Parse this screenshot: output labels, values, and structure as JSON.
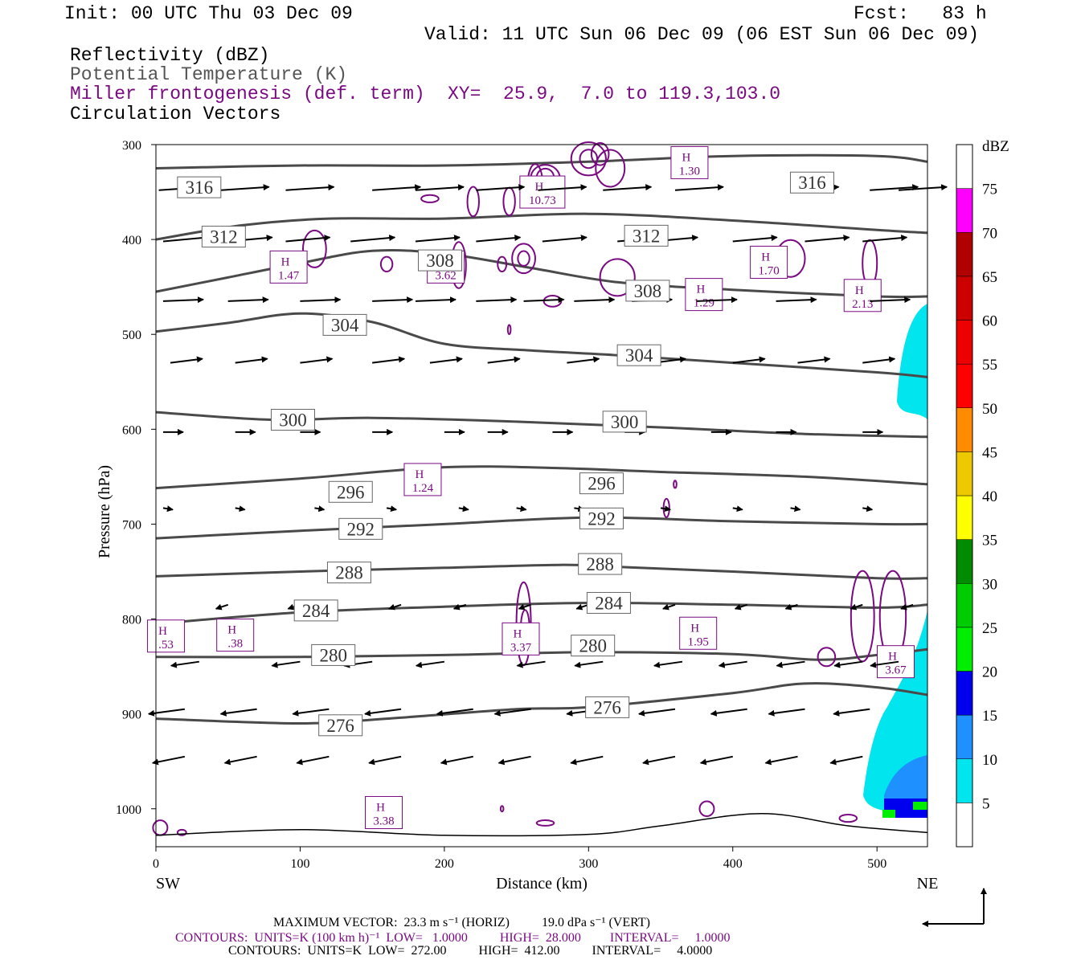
{
  "header": {
    "init": "Init: 00 UTC Thu 03 Dec 09",
    "fcst": "Fcst:   83 h",
    "valid": "Valid: 11 UTC Sun 06 Dec 09 (06 EST Sun 06 Dec 09)",
    "field1": "Reflectivity (dBZ)",
    "field2": "Potential Temperature (K)",
    "field3": "Miller frontogenesis (def. term)",
    "xy": "XY=  25.9,  7.0 to 119.3,103.0",
    "field4": "Circulation Vectors"
  },
  "footer": {
    "max_vector": "MAXIMUM VECTOR:  23.3 m s⁻¹ (HORIZ)          19.0 dPa s⁻¹ (VERT)",
    "contours1": "CONTOURS:  UNITS=K (100 km h)⁻¹  LOW=   1.0000          HIGH=  28.000         INTERVAL=     1.0000",
    "contours2": "CONTOURS:  UNITS=K  LOW=  272.00          HIGH=  412.00          INTERVAL=     4.0000"
  },
  "colors": {
    "theta": "#4a4a4a",
    "frontogenesis": "#7a0a82",
    "vectors": "#000000"
  },
  "chart_data": {
    "type": "cross-section",
    "xlabel": "Distance (km)",
    "ylabel": "Pressure (hPa)",
    "xlim": [
      0,
      535
    ],
    "ylim": [
      1040,
      300
    ],
    "x_ticks": [
      0,
      100,
      200,
      300,
      400,
      500
    ],
    "y_ticks": [
      300,
      400,
      500,
      600,
      700,
      800,
      900,
      1000
    ],
    "x_end_labels": [
      "SW",
      "NE"
    ],
    "colorbar": {
      "title": "dBZ",
      "levels": [
        5,
        10,
        15,
        20,
        25,
        30,
        35,
        40,
        45,
        50,
        55,
        60,
        65,
        70,
        75
      ],
      "colors": [
        "#00e5ee",
        "#1e90ff",
        "#0000ee",
        "#00ee00",
        "#00cd00",
        "#008b00",
        "#ffff00",
        "#eec900",
        "#ff8c00",
        "#ff0000",
        "#ee0000",
        "#cd0000",
        "#b00000",
        "#ff00ff",
        "#9b5fc0"
      ]
    },
    "theta_contours": [
      {
        "value": 316,
        "points": [
          [
            0,
            325
          ],
          [
            100,
            322
          ],
          [
            200,
            322
          ],
          [
            300,
            318
          ],
          [
            400,
            312
          ],
          [
            500,
            312
          ],
          [
            535,
            318
          ]
        ],
        "labels": [
          [
            30,
            345
          ],
          [
            455,
            340
          ]
        ]
      },
      {
        "value": 312,
        "points": [
          [
            0,
            400
          ],
          [
            60,
            385
          ],
          [
            120,
            378
          ],
          [
            200,
            378
          ],
          [
            300,
            373
          ],
          [
            400,
            380
          ],
          [
            500,
            390
          ],
          [
            535,
            393
          ]
        ],
        "labels": [
          [
            47,
            397
          ],
          [
            340,
            396
          ]
        ]
      },
      {
        "value": 308,
        "points": [
          [
            0,
            455
          ],
          [
            50,
            440
          ],
          [
            100,
            425
          ],
          [
            150,
            412
          ],
          [
            200,
            415
          ],
          [
            260,
            430
          ],
          [
            320,
            445
          ],
          [
            400,
            453
          ],
          [
            500,
            460
          ],
          [
            535,
            460
          ]
        ],
        "labels": [
          [
            197,
            422
          ],
          [
            341,
            454
          ]
        ]
      },
      {
        "value": 304,
        "points": [
          [
            0,
            497
          ],
          [
            50,
            488
          ],
          [
            100,
            478
          ],
          [
            150,
            487
          ],
          [
            200,
            510
          ],
          [
            260,
            517
          ],
          [
            320,
            522
          ],
          [
            400,
            530
          ],
          [
            500,
            540
          ],
          [
            535,
            545
          ]
        ],
        "labels": [
          [
            131,
            490
          ],
          [
            335,
            522
          ]
        ]
      },
      {
        "value": 300,
        "points": [
          [
            0,
            582
          ],
          [
            80,
            590
          ],
          [
            150,
            588
          ],
          [
            250,
            592
          ],
          [
            350,
            598
          ],
          [
            450,
            605
          ],
          [
            535,
            608
          ]
        ],
        "labels": [
          [
            95,
            590
          ],
          [
            325,
            592
          ]
        ]
      },
      {
        "value": 296,
        "points": [
          [
            0,
            662
          ],
          [
            100,
            652
          ],
          [
            200,
            640
          ],
          [
            280,
            641
          ],
          [
            350,
            645
          ],
          [
            450,
            650
          ],
          [
            535,
            658
          ]
        ],
        "labels": [
          [
            135,
            666
          ],
          [
            309,
            657
          ]
        ]
      },
      {
        "value": 292,
        "points": [
          [
            0,
            715
          ],
          [
            100,
            707
          ],
          [
            200,
            700
          ],
          [
            300,
            693
          ],
          [
            400,
            697
          ],
          [
            500,
            700
          ],
          [
            535,
            700
          ]
        ],
        "labels": [
          [
            142,
            705
          ],
          [
            309,
            694
          ]
        ]
      },
      {
        "value": 288,
        "points": [
          [
            0,
            755
          ],
          [
            100,
            750
          ],
          [
            200,
            746
          ],
          [
            280,
            743
          ],
          [
            320,
            745
          ],
          [
            400,
            750
          ],
          [
            500,
            757
          ],
          [
            535,
            757
          ]
        ],
        "labels": [
          [
            134,
            751
          ],
          [
            308,
            742
          ]
        ]
      },
      {
        "value": 284,
        "points": [
          [
            0,
            805
          ],
          [
            100,
            793
          ],
          [
            200,
            787
          ],
          [
            300,
            783
          ],
          [
            400,
            785
          ],
          [
            500,
            788
          ],
          [
            535,
            785
          ]
        ],
        "labels": [
          [
            111,
            791
          ],
          [
            314,
            783
          ]
        ]
      },
      {
        "value": 280,
        "points": [
          [
            0,
            840
          ],
          [
            100,
            840
          ],
          [
            200,
            838
          ],
          [
            300,
            835
          ],
          [
            400,
            837
          ],
          [
            460,
            843
          ],
          [
            500,
            838
          ],
          [
            535,
            832
          ]
        ],
        "labels": [
          [
            123,
            838
          ],
          [
            303,
            828
          ]
        ]
      },
      {
        "value": 276,
        "points": [
          [
            0,
            905
          ],
          [
            100,
            910
          ],
          [
            160,
            905
          ],
          [
            250,
            895
          ],
          [
            300,
            893
          ],
          [
            400,
            878
          ],
          [
            450,
            868
          ],
          [
            500,
            872
          ],
          [
            535,
            880
          ]
        ],
        "labels": [
          [
            128,
            912
          ],
          [
            313,
            893
          ]
        ]
      }
    ],
    "frontogenesis_maxima": [
      {
        "label": "H",
        "value": "10.73",
        "x": 268,
        "p": 350
      },
      {
        "label": "H",
        "value": "1.30",
        "x": 370,
        "p": 319
      },
      {
        "label": "H",
        "value": "1.47",
        "x": 92,
        "p": 429
      },
      {
        "label": "H",
        "value": "3.62",
        "x": 201,
        "p": 429
      },
      {
        "label": "H",
        "value": "1.70",
        "x": 425,
        "p": 424
      },
      {
        "label": "H",
        "value": "1.29",
        "x": 380,
        "p": 458
      },
      {
        "label": "H",
        "value": "2.13",
        "x": 490,
        "p": 459
      },
      {
        "label": "H",
        "value": "1.24",
        "x": 185,
        "p": 653
      },
      {
        "label": "H",
        "value": ".53",
        "x": 7,
        "p": 818
      },
      {
        "label": "H",
        "value": ".38",
        "x": 55,
        "p": 817
      },
      {
        "label": "H",
        "value": "3.37",
        "x": 253,
        "p": 821
      },
      {
        "label": "H",
        "value": "1.95",
        "x": 376,
        "p": 815
      },
      {
        "label": "H",
        "value": "3.67",
        "x": 513,
        "p": 845
      },
      {
        "label": "H",
        "value": "3.38",
        "x": 158,
        "p": 1004
      }
    ]
  },
  "reference_vector": {
    "horiz_label": "",
    "vert_label": ""
  }
}
